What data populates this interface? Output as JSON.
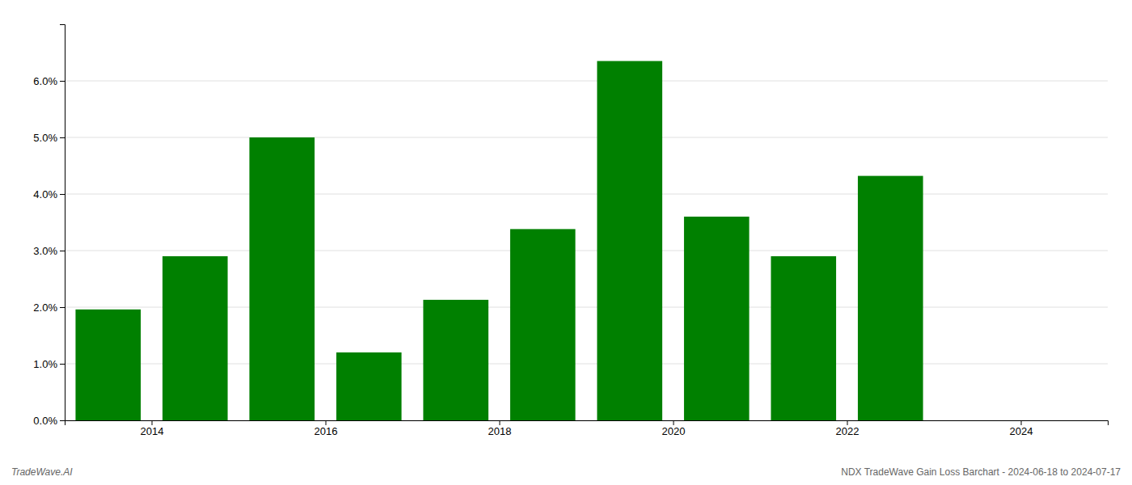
{
  "chart_data": {
    "type": "bar",
    "x": [
      2013.5,
      2014.5,
      2015.5,
      2016.5,
      2017.5,
      2018.5,
      2019.5,
      2020.5,
      2021.5,
      2022.5
    ],
    "values": [
      0.0196,
      0.029,
      0.05,
      0.012,
      0.0213,
      0.0338,
      0.0635,
      0.036,
      0.029,
      0.0432
    ],
    "color": "#008000",
    "xlim": [
      2013.0,
      2025.0
    ],
    "xticks": [
      2014,
      2016,
      2018,
      2020,
      2022,
      2024
    ],
    "ylim": [
      0.0,
      0.07
    ],
    "yticks": [
      {
        "value": 0.0,
        "label": "0.0%"
      },
      {
        "value": 0.01,
        "label": "1.0%"
      },
      {
        "value": 0.02,
        "label": "2.0%"
      },
      {
        "value": 0.03,
        "label": "3.0%"
      },
      {
        "value": 0.04,
        "label": "4.0%"
      },
      {
        "value": 0.05,
        "label": "5.0%"
      },
      {
        "value": 0.06,
        "label": "6.0%"
      }
    ],
    "grid": true,
    "annotations": [
      "TradeWave.AI",
      "NDX TradeWave Gain Loss Barchart - 2024-06-18 to 2024-07-17"
    ]
  }
}
